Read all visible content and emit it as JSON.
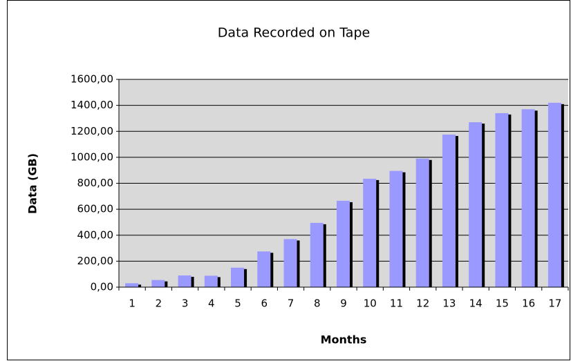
{
  "chart_data": {
    "type": "bar",
    "title": "Data Recorded on Tape",
    "x_label": "Months",
    "y_label": "Data (GB)",
    "categories": [
      "1",
      "2",
      "3",
      "4",
      "5",
      "6",
      "7",
      "8",
      "9",
      "10",
      "11",
      "12",
      "13",
      "14",
      "15",
      "16",
      "17"
    ],
    "values": [
      30,
      55,
      90,
      88,
      150,
      275,
      370,
      495,
      665,
      835,
      895,
      990,
      1175,
      1270,
      1340,
      1370,
      1420
    ],
    "color": "#9999ff",
    "ylim": [
      0,
      1600
    ],
    "yticks": [
      {
        "value": 0,
        "label": "0,00"
      },
      {
        "value": 200,
        "label": "200,00"
      },
      {
        "value": 400,
        "label": "400,00"
      },
      {
        "value": 600,
        "label": "600,00"
      },
      {
        "value": 800,
        "label": "800,00"
      },
      {
        "value": 1000,
        "label": "1000,00"
      },
      {
        "value": 1200,
        "label": "1200,00"
      },
      {
        "value": 1400,
        "label": "1400,00"
      },
      {
        "value": 1600,
        "label": "1600,00"
      }
    ],
    "grid": true
  }
}
